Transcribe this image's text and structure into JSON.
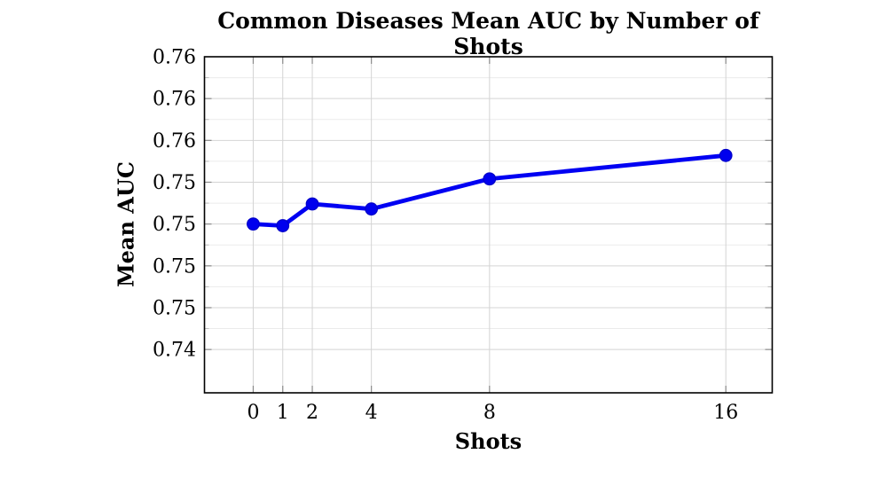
{
  "title": "Common Diseases Mean AUC by Number of Shots",
  "chart_data": {
    "type": "line",
    "title": "Common Diseases Mean AUC by Number of Shots",
    "xlabel": "Shots",
    "ylabel": "Mean AUC",
    "x": [
      0,
      1,
      2,
      4,
      8,
      16
    ],
    "series": [
      {
        "name": "Mean AUC",
        "values": [
          0.75,
          0.7499,
          0.7512,
          0.7509,
          0.7527,
          0.7541
        ]
      }
    ],
    "xlim": [
      -1.65,
      17.57
    ],
    "ylim": [
      0.73991,
      0.76
    ],
    "xticks": {
      "values": [
        0,
        1,
        2,
        4,
        8,
        16
      ],
      "labels": [
        "0",
        "1",
        "2",
        "4",
        "8",
        "16"
      ]
    },
    "yticks": {
      "values": [
        0.76,
        0.7575,
        0.755,
        0.7525,
        0.75,
        0.7475,
        0.745,
        0.7425
      ],
      "labels": [
        "0.76",
        "0.76",
        "0.76",
        "0.75",
        "0.75",
        "0.75",
        "0.75",
        "0.74"
      ]
    },
    "yminorticks": [
      0.74375,
      0.74625,
      0.74875,
      0.75125,
      0.75375,
      0.75625,
      0.75875
    ],
    "grid": {
      "major": true,
      "minor_y": true,
      "minor_x": false
    },
    "legend": false,
    "colors": {
      "line": "#0000f2",
      "marker_fill": "#0000ee",
      "marker_edge": "#0000c8",
      "grid_major": "#d4d4d4",
      "grid_minor": "#ebebeb",
      "tick_major": "#8c8c8c",
      "tick_minor": "#bdbdbd",
      "frame": "#000000",
      "text": "#000000",
      "background": "#ffffff"
    }
  }
}
